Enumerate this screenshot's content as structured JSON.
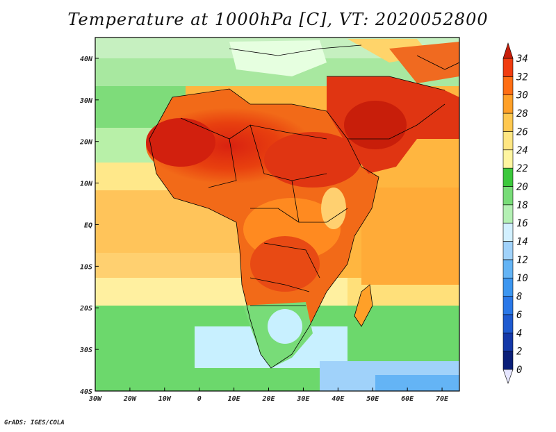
{
  "title": "Temperature at 1000hPa [C], VT: 2020052800",
  "credit": "GrADS: IGES/COLA",
  "map": {
    "lat_labels": [
      "40N",
      "30N",
      "20N",
      "10N",
      "EQ",
      "10S",
      "20S",
      "30S",
      "40S"
    ],
    "lon_labels": [
      "30W",
      "20W",
      "10W",
      "0",
      "10E",
      "20E",
      "30E",
      "40E",
      "50E",
      "60E",
      "70E"
    ]
  },
  "colorbar": {
    "labels": [
      "0",
      "2",
      "4",
      "6",
      "8",
      "10",
      "12",
      "14",
      "16",
      "18",
      "20",
      "22",
      "24",
      "26",
      "28",
      "30",
      "32",
      "34"
    ],
    "colors": [
      "#e6e6ff",
      "#0a1e78",
      "#1438a8",
      "#1e5ad0",
      "#2a78e8",
      "#3c96f0",
      "#64b4f5",
      "#a0d2fa",
      "#d2f0ff",
      "#b4f0b4",
      "#78dc78",
      "#3cc83c",
      "#fff5a0",
      "#ffe682",
      "#ffc850",
      "#ffa028",
      "#ff6e14",
      "#f03c10",
      "#c81e0a"
    ]
  },
  "chart_data": {
    "type": "heatmap",
    "title": "Temperature at 1000hPa [C], VT: 2020052800",
    "x_range": [
      -30,
      75
    ],
    "y_range": [
      -40,
      45
    ],
    "value_range": [
      0,
      34
    ],
    "units": "C"
  }
}
